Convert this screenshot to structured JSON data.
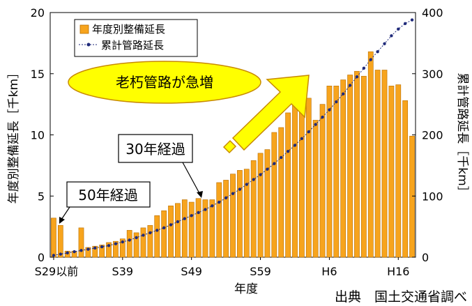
{
  "chart_data": {
    "type": "bar+line",
    "xlabel": "年度",
    "ylabel_left": "年度別整備延長［千km］",
    "ylabel_right": "累計管路延長［千km］",
    "ylim_left": [
      0,
      20
    ],
    "ylim_right": [
      0,
      400
    ],
    "yticks_left": [
      "0",
      "5",
      "10",
      "15",
      "20"
    ],
    "yticks_right": [
      "0",
      "100",
      "200",
      "300",
      "400"
    ],
    "xtick_labels": [
      {
        "index": 0,
        "label": "S29以前"
      },
      {
        "index": 10,
        "label": "S39"
      },
      {
        "index": 20,
        "label": "S49"
      },
      {
        "index": 30,
        "label": "S59"
      },
      {
        "index": 40,
        "label": "H6"
      },
      {
        "index": 50,
        "label": "H16"
      }
    ],
    "legend": {
      "position": "top-left",
      "bar_label": "年度別整備延長",
      "line_label": "累計管路延長"
    },
    "series": [
      {
        "name": "年度別整備延長",
        "kind": "bar",
        "axis": "left",
        "color": "#F7A41D",
        "values": [
          3.2,
          2.6,
          0.5,
          0.5,
          2.4,
          0.8,
          0.9,
          1.0,
          1.2,
          1.3,
          1.5,
          2.2,
          2.0,
          2.4,
          2.6,
          3.4,
          3.8,
          4.2,
          4.4,
          4.7,
          4.5,
          4.8,
          4.7,
          4.7,
          6.1,
          6.3,
          6.8,
          7.1,
          7.2,
          7.9,
          8.5,
          8.8,
          10.2,
          10.6,
          11.8,
          12.5,
          13.4,
          13.0,
          11.2,
          12.5,
          14.0,
          14.0,
          14.5,
          14.9,
          15.2,
          14.8,
          16.8,
          15.3,
          15.3,
          14.0,
          14.1,
          12.8,
          9.9
        ]
      },
      {
        "name": "累計管路延長",
        "kind": "line",
        "axis": "right",
        "color": "#1F2A7A",
        "values": [
          3,
          5,
          7,
          9,
          11,
          13,
          15,
          17,
          19,
          22,
          25,
          28,
          32,
          36,
          40,
          44,
          48,
          53,
          58,
          63,
          68,
          73,
          78,
          84,
          90,
          97,
          104,
          111,
          119,
          127,
          135,
          144,
          153,
          163,
          173,
          183,
          194,
          205,
          217,
          229,
          241,
          254,
          267,
          281,
          295,
          309,
          323,
          336,
          349,
          362,
          373,
          382,
          388
        ]
      }
    ]
  },
  "annotations": {
    "bubble": "老朽管路が急増",
    "callout_30": "30年経過",
    "callout_50": "50年経過",
    "source": "出典　国土交通省調べ"
  },
  "colors": {
    "bar": "#F7A41D",
    "bar_edge": "#B86E00",
    "line": "#1F2A7A",
    "bubble_fill": "#FFFF00",
    "arrow_fill": "#FFFF00",
    "arrow_edge": "#C88A00"
  }
}
